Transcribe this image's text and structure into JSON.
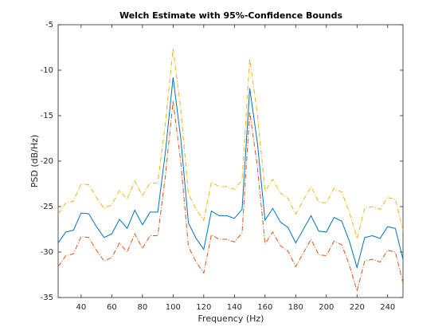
{
  "chart_data": {
    "type": "line",
    "title": "Welch Estimate with 95%-Confidence Bounds",
    "xlabel": "Frequency (Hz)",
    "ylabel": "PSD (dB/Hz)",
    "x": [
      25,
      30,
      35,
      40,
      45,
      50,
      55,
      60,
      65,
      70,
      75,
      80,
      85,
      90,
      95,
      100,
      105,
      110,
      115,
      120,
      125,
      130,
      135,
      140,
      145,
      150,
      155,
      160,
      165,
      170,
      175,
      180,
      185,
      190,
      195,
      200,
      205,
      210,
      215,
      220,
      225,
      230,
      235,
      240,
      245,
      250
    ],
    "series": [
      {
        "color": "#0072bd",
        "dash": "none",
        "values": [
          -29,
          -27.8,
          -27.6,
          -25.7,
          -25.8,
          -27.2,
          -28.4,
          -28.0,
          -26.4,
          -27.4,
          -25.4,
          -27.0,
          -25.6,
          -25.6,
          -19,
          -10.8,
          -17.5,
          -26.8,
          -28.5,
          -29.7,
          -25.5,
          -26.0,
          -26.0,
          -26.3,
          -25.3,
          -12,
          -18,
          -26.5,
          -25.2,
          -26.7,
          -27.3,
          -29.0,
          -27.5,
          -26.0,
          -27.7,
          -27.8,
          -26.2,
          -26.6,
          -28.8,
          -31.7,
          -28.4,
          -28.2,
          -28.5,
          -27.2,
          -27.4,
          -30.8
        ]
      },
      {
        "color": "#edb120",
        "dash": "6 2 1 2",
        "values": [
          -25.8,
          -24.6,
          -24.4,
          -22.5,
          -22.6,
          -24.0,
          -25.2,
          -24.8,
          -23.2,
          -24.2,
          -22.2,
          -23.8,
          -22.4,
          -22.4,
          -15.8,
          -7.6,
          -14.3,
          -23.6,
          -25.3,
          -26.5,
          -22.3,
          -22.8,
          -22.8,
          -23.1,
          -22.1,
          -8.8,
          -14.8,
          -23.3,
          -22.0,
          -23.5,
          -24.1,
          -25.8,
          -24.3,
          -22.8,
          -24.5,
          -24.6,
          -23.0,
          -23.4,
          -25.6,
          -28.5,
          -25.2,
          -25.0,
          -25.3,
          -24.0,
          -24.2,
          -27.6
        ]
      },
      {
        "color": "#d95319",
        "dash": "6 2 1 2",
        "values": [
          -31.6,
          -30.4,
          -30.2,
          -28.3,
          -28.4,
          -29.8,
          -31.0,
          -30.6,
          -29.0,
          -30.0,
          -28.0,
          -29.6,
          -28.2,
          -28.2,
          -21.6,
          -13.4,
          -20.1,
          -29.4,
          -31.1,
          -32.3,
          -28.1,
          -28.6,
          -28.6,
          -28.9,
          -27.9,
          -14.6,
          -20.6,
          -29.1,
          -27.8,
          -29.3,
          -29.9,
          -31.6,
          -30.1,
          -28.6,
          -30.3,
          -30.4,
          -28.8,
          -29.2,
          -31.4,
          -34.3,
          -31.0,
          -30.8,
          -31.1,
          -29.8,
          -30.0,
          -33.4
        ]
      }
    ],
    "xlim": [
      25,
      250
    ],
    "ylim": [
      -35,
      -5
    ],
    "xticks": [
      40,
      60,
      80,
      100,
      120,
      140,
      160,
      180,
      200,
      220,
      240
    ],
    "yticks": [
      -35,
      -30,
      -25,
      -20,
      -15,
      -10,
      -5
    ],
    "grid": false
  }
}
